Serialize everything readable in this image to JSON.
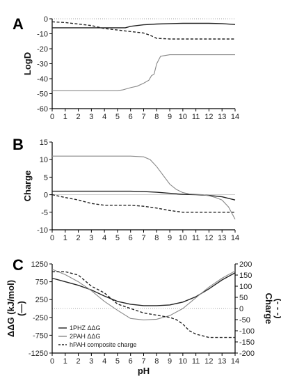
{
  "chart_data": [
    {
      "panel": "A",
      "type": "line",
      "ylabel": "LogD",
      "xlim": [
        0,
        14
      ],
      "ylim": [
        -60,
        0
      ],
      "yticks": [
        0,
        -10,
        -20,
        -30,
        -40,
        -50,
        -60
      ],
      "xticks": [
        0,
        1,
        2,
        3,
        4,
        5,
        6,
        7,
        8,
        9,
        10,
        11,
        12,
        13,
        14
      ],
      "series": [
        {
          "color": "#222222",
          "dash": "solid",
          "x": [
            0,
            1,
            2,
            3,
            4,
            5,
            5.6,
            6,
            7,
            8,
            9,
            10,
            11,
            12,
            13,
            14
          ],
          "y": [
            -6,
            -6,
            -6,
            -6,
            -6,
            -6,
            -6,
            -5,
            -4,
            -3.5,
            -3.2,
            -3,
            -3,
            -3,
            -3.2,
            -3.8
          ]
        },
        {
          "color": "#222222",
          "dash": "dashed",
          "x": [
            0,
            1,
            2,
            3,
            4,
            5,
            6,
            7,
            7.5,
            8,
            9,
            10,
            11,
            12,
            13,
            14
          ],
          "y": [
            -2,
            -2.5,
            -3.5,
            -4.5,
            -6.5,
            -7.5,
            -8.5,
            -9.5,
            -11,
            -13,
            -13.5,
            -13.5,
            -13.5,
            -13.5,
            -13.5,
            -13.5
          ]
        },
        {
          "color": "#888888",
          "dash": "solid",
          "x": [
            0,
            1,
            2,
            3,
            4,
            5,
            5.4,
            6,
            6.5,
            7,
            7.4,
            7.6,
            7.8,
            8,
            8.3,
            9,
            10,
            11,
            12,
            13,
            14
          ],
          "y": [
            -48,
            -48,
            -48,
            -48,
            -48,
            -48,
            -47.5,
            -46,
            -45,
            -43,
            -41,
            -38,
            -37,
            -30,
            -25,
            -24,
            -24,
            -24,
            -24,
            -24,
            -24
          ]
        }
      ]
    },
    {
      "panel": "B",
      "type": "line",
      "ylabel": "Charge",
      "xlim": [
        0,
        14
      ],
      "ylim": [
        -10,
        15
      ],
      "yticks": [
        15,
        10,
        5,
        0,
        -5,
        -10
      ],
      "xticks": [
        0,
        1,
        2,
        3,
        4,
        5,
        6,
        7,
        8,
        9,
        10,
        11,
        12,
        13,
        14
      ],
      "series": [
        {
          "color": "#222222",
          "dash": "solid",
          "x": [
            0,
            1,
            2,
            3,
            4,
            5,
            6,
            7,
            8,
            9,
            10,
            11,
            12,
            13,
            14
          ],
          "y": [
            1,
            1,
            1,
            1,
            1,
            1,
            1,
            0.9,
            0.7,
            0.4,
            0.1,
            0,
            -0.2,
            -0.6,
            -1.5
          ]
        },
        {
          "color": "#222222",
          "dash": "dashed",
          "x": [
            0,
            1,
            2,
            3,
            4,
            5,
            6,
            7,
            8,
            9,
            10,
            11,
            12,
            13,
            14
          ],
          "y": [
            0,
            -0.8,
            -1.5,
            -2.5,
            -3,
            -3,
            -3,
            -3.3,
            -3.8,
            -4.5,
            -5,
            -5,
            -5,
            -5,
            -5
          ]
        },
        {
          "color": "#888888",
          "dash": "solid",
          "x": [
            0,
            1,
            2,
            3,
            4,
            5,
            6,
            7,
            7.5,
            8,
            8.5,
            9,
            9.5,
            10,
            10.5,
            11,
            11.5,
            12,
            12.5,
            13,
            13.5,
            14
          ],
          "y": [
            11,
            11,
            11,
            11,
            11,
            11,
            11,
            10.8,
            10,
            8,
            5.5,
            3,
            1.5,
            0.6,
            0.2,
            0.1,
            0,
            -0.3,
            -0.8,
            -1.5,
            -3.5,
            -7
          ]
        }
      ]
    },
    {
      "panel": "C",
      "type": "line",
      "xlabel": "pH",
      "ylabel": "ΔΔG (kJ/mol)",
      "ylabel_bracket": "(—)",
      "y2label": "Charge",
      "y2label_bracket": "(- - -)",
      "xlim": [
        0,
        14
      ],
      "ylim": [
        -1250,
        1250
      ],
      "y2lim": [
        -200,
        200
      ],
      "yticks": [
        1250,
        750,
        250,
        -250,
        -750,
        -1250
      ],
      "y2ticks": [
        200,
        150,
        100,
        50,
        0,
        -50,
        -100,
        -150,
        -200
      ],
      "xticks": [
        0,
        1,
        2,
        3,
        4,
        5,
        6,
        7,
        8,
        9,
        10,
        11,
        12,
        13,
        14
      ],
      "legend": {
        "position": "bottom-left"
      },
      "series": [
        {
          "name": "1PHZ ΔΔG",
          "axis": "left",
          "color": "#222222",
          "dash": "solid",
          "x": [
            0,
            1,
            2,
            3,
            4,
            5,
            6,
            7,
            8,
            9,
            10,
            11,
            12,
            13,
            14
          ],
          "y": [
            850,
            750,
            650,
            520,
            350,
            200,
            120,
            80,
            80,
            100,
            180,
            330,
            550,
            800,
            1000
          ]
        },
        {
          "name": "2PAH ΔΔG",
          "axis": "left",
          "color": "#888888",
          "dash": "solid",
          "x": [
            0,
            1,
            2,
            3,
            4,
            5,
            6,
            7,
            8,
            9,
            10,
            11,
            12,
            13,
            14
          ],
          "y": [
            1100,
            950,
            750,
            500,
            200,
            -50,
            -280,
            -320,
            -300,
            -200,
            0,
            300,
            600,
            850,
            1050
          ]
        },
        {
          "name": "hPAH composite charge",
          "axis": "right",
          "color": "#222222",
          "dash": "dashed",
          "x": [
            0,
            1,
            2,
            3,
            3.5,
            4,
            5,
            6,
            7,
            8,
            9,
            9.5,
            10,
            10.5,
            11,
            12,
            13,
            14
          ],
          "y": [
            165,
            165,
            150,
            100,
            85,
            70,
            20,
            0,
            -20,
            -30,
            -40,
            -50,
            -70,
            -100,
            -115,
            -130,
            -130,
            -130
          ]
        }
      ]
    }
  ],
  "panel_labels": [
    "A",
    "B",
    "C"
  ],
  "reference_line": {
    "color": "#888888"
  }
}
